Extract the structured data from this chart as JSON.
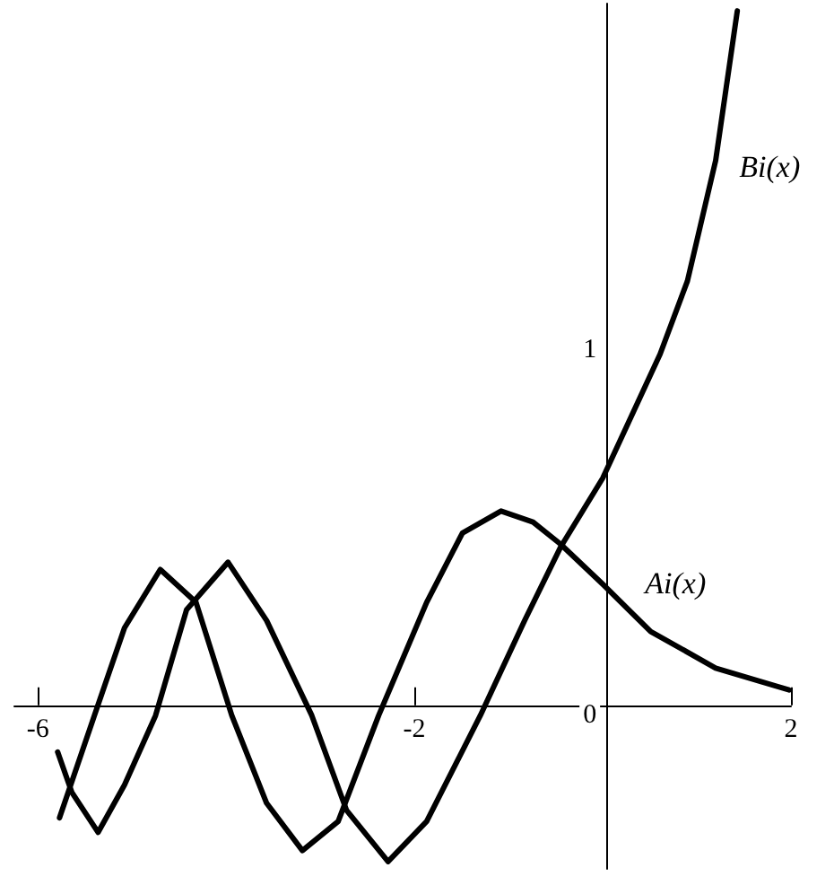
{
  "chart_data": {
    "type": "line",
    "xlim": [
      -6.25,
      2
    ],
    "ylim": [
      -0.42,
      1.95
    ],
    "xticks": [
      -6,
      -2,
      2
    ],
    "yticks": [
      0,
      1
    ],
    "grid": false,
    "legend": false,
    "marker": "none",
    "line_style": "solid",
    "series": [
      {
        "name": "Bi(x)",
        "color": "#000000",
        "x": [
          -5.79,
          -5.64,
          -5.36,
          -5.08,
          -4.75,
          -4.42,
          -3.98,
          -3.57,
          -3.09,
          -2.72,
          -2.28,
          -1.87,
          -1.3,
          -0.83,
          -0.45,
          0,
          0.61,
          0.9,
          1.2,
          1.43
        ],
        "values": [
          -0.1,
          -0.21,
          -0.32,
          -0.19,
          0,
          0.29,
          0.42,
          0.26,
          0,
          -0.26,
          -0.4,
          -0.29,
          0,
          0.26,
          0.46,
          0.65,
          0.99,
          1.19,
          1.52,
          1.93
        ]
      },
      {
        "name": "Ai(x)",
        "color": "#000000",
        "x": [
          -5.77,
          -5.4,
          -5.08,
          -4.7,
          -4.32,
          -3.94,
          -3.57,
          -3.19,
          -2.81,
          -2.38,
          -1.87,
          -1.49,
          -1.08,
          -0.74,
          -0.45,
          0,
          0.51,
          1.2,
          1.98
        ],
        "values": [
          -0.28,
          0,
          0.24,
          0.4,
          0.31,
          0,
          -0.24,
          -0.37,
          -0.29,
          0,
          0.31,
          0.5,
          0.56,
          0.53,
          0.47,
          0.36,
          0.23,
          0.13,
          0.07
        ]
      }
    ]
  }
}
